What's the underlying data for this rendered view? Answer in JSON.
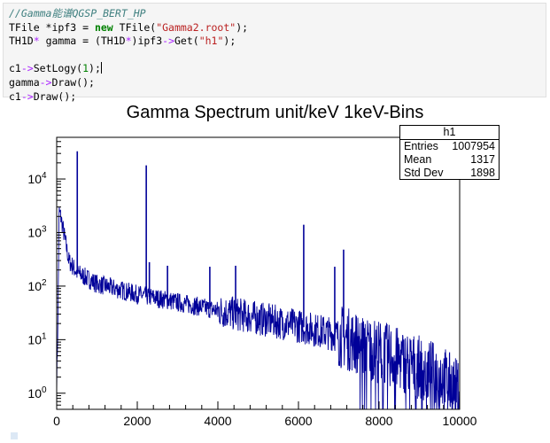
{
  "code": {
    "comment": "//Gamma能谱QGSP_BERT_HP",
    "line2": {
      "type": "TFile",
      "rest1": " *ipf3 = ",
      "kw": "new",
      "rest2": " TFile(",
      "str": "\"Gamma2.root\"",
      "rest3": ");"
    },
    "line3": {
      "type": "TH1D",
      "op1": "*",
      "rest1": " gamma = (TH1D",
      "op2": "*",
      "rest2": ")ipf3",
      "op3": "->",
      "rest3": "Get(",
      "str": "\"h1\"",
      "rest4": ");"
    },
    "line5": {
      "obj": "c1",
      "op": "->",
      "call": "SetLogy(",
      "num": "1",
      "end": ");"
    },
    "line6": {
      "obj": "gamma",
      "op": "->",
      "call": "Draw();"
    },
    "line7": {
      "obj": "c1",
      "op": "->",
      "call": "Draw();"
    }
  },
  "chart_data": {
    "type": "line",
    "title": "Gamma Spectrum unit/keV 1keV-Bins",
    "xlabel": "",
    "ylabel": "",
    "xlim": [
      0,
      10000
    ],
    "ylim": [
      0.5,
      60000
    ],
    "ylog": true,
    "grid": false,
    "legend": "none",
    "color": "#000099",
    "x_ticks": [
      "0",
      "2000",
      "4000",
      "6000",
      "8000",
      "10000"
    ],
    "y_ticks": [
      {
        "value": 1,
        "base": "10",
        "exp": "0"
      },
      {
        "value": 10,
        "base": "10",
        "exp": "1"
      },
      {
        "value": 100,
        "base": "10",
        "exp": "2"
      },
      {
        "value": 1000,
        "base": "10",
        "exp": "3"
      },
      {
        "value": 10000,
        "base": "10",
        "exp": "4"
      }
    ],
    "continuum": [
      {
        "x": 0,
        "y": 1.5
      },
      {
        "x": 30,
        "y": 20
      },
      {
        "x": 60,
        "y": 2500
      },
      {
        "x": 100,
        "y": 2000
      },
      {
        "x": 200,
        "y": 800
      },
      {
        "x": 300,
        "y": 300
      },
      {
        "x": 500,
        "y": 180
      },
      {
        "x": 1000,
        "y": 110
      },
      {
        "x": 2000,
        "y": 70
      },
      {
        "x": 3000,
        "y": 50
      },
      {
        "x": 4000,
        "y": 35
      },
      {
        "x": 5000,
        "y": 25
      },
      {
        "x": 6000,
        "y": 18
      },
      {
        "x": 7000,
        "y": 12
      },
      {
        "x": 8000,
        "y": 6
      },
      {
        "x": 9000,
        "y": 3
      },
      {
        "x": 9600,
        "y": 2
      },
      {
        "x": 10000,
        "y": 1
      }
    ],
    "peaks": [
      {
        "x": 511,
        "y": 33000
      },
      {
        "x": 2223,
        "y": 18000
      },
      {
        "x": 2300,
        "y": 280
      },
      {
        "x": 2750,
        "y": 240
      },
      {
        "x": 3800,
        "y": 230
      },
      {
        "x": 4440,
        "y": 240
      },
      {
        "x": 6130,
        "y": 1400
      },
      {
        "x": 6900,
        "y": 230
      },
      {
        "x": 7120,
        "y": 480
      }
    ],
    "stats": {
      "name": "h1",
      "entries_label": "Entries",
      "entries": "1007954",
      "mean_label": "Mean",
      "mean": "1317",
      "std_label": "Std Dev",
      "std": "1898"
    }
  }
}
